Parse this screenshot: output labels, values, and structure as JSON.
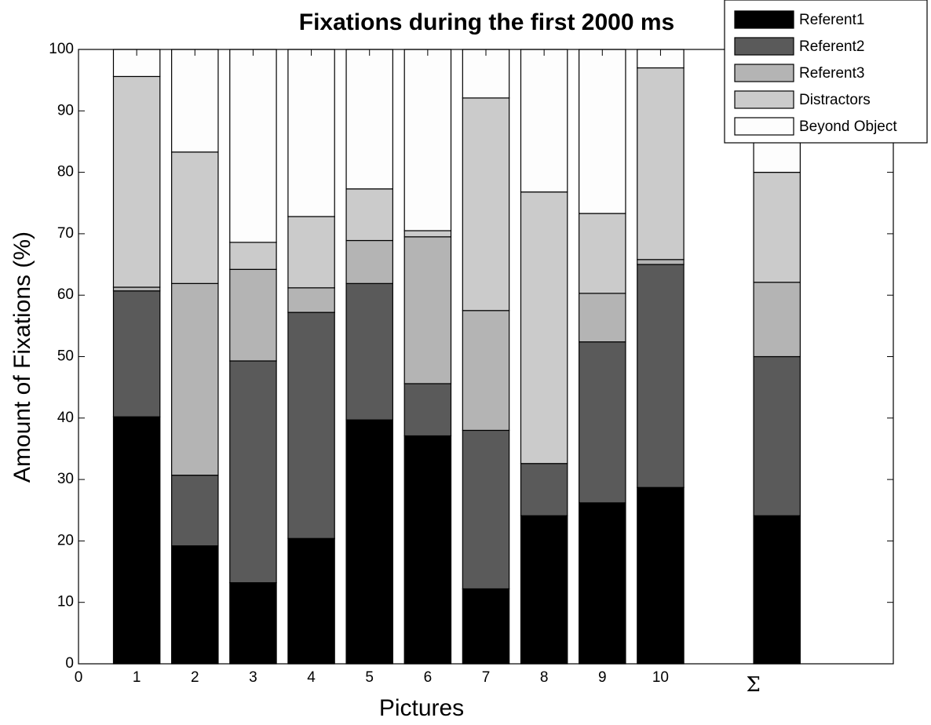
{
  "chart_data": {
    "type": "stacked_bar",
    "title": "Fixations during the first 2000 ms",
    "xlabel": "Pictures",
    "ylabel": "Amount of Fixations (%)",
    "x": [
      1,
      2,
      3,
      4,
      5,
      6,
      7,
      8,
      9,
      10,
      12
    ],
    "xlim": [
      0,
      14
    ],
    "xticks": [
      0,
      1,
      2,
      3,
      4,
      5,
      6,
      7,
      8,
      9,
      10,
      {
        "value": 12,
        "label": "Σ"
      }
    ],
    "ylim": [
      0,
      100
    ],
    "yticks": [
      0,
      10,
      20,
      30,
      40,
      50,
      60,
      70,
      80,
      90,
      100
    ],
    "legend_position": "upper right",
    "series": [
      {
        "name": "Referent1",
        "color": "#000000",
        "values": [
          40.2,
          19.2,
          13.2,
          20.4,
          39.7,
          37.1,
          12.2,
          24.1,
          26.2,
          28.7,
          24.1
        ]
      },
      {
        "name": "Referent2",
        "color": "#5a5a5a",
        "values": [
          20.5,
          11.5,
          36.1,
          36.8,
          22.2,
          8.5,
          25.8,
          8.5,
          26.2,
          36.3,
          25.9
        ]
      },
      {
        "name": "Referent3",
        "color": "#b4b4b4",
        "values": [
          0.6,
          31.2,
          14.9,
          4.0,
          7.0,
          23.9,
          19.5,
          0.0,
          7.9,
          0.8,
          12.1
        ]
      },
      {
        "name": "Distractors",
        "color": "#cbcbcb",
        "values": [
          34.3,
          21.4,
          4.4,
          11.6,
          8.4,
          1.0,
          34.6,
          44.2,
          13.0,
          31.2,
          17.9
        ]
      },
      {
        "name": "Beyond Object",
        "color": "#fdfdfd",
        "values": [
          4.4,
          16.7,
          31.4,
          27.2,
          22.7,
          29.5,
          7.9,
          23.2,
          26.7,
          3.0,
          20.0
        ]
      }
    ]
  }
}
